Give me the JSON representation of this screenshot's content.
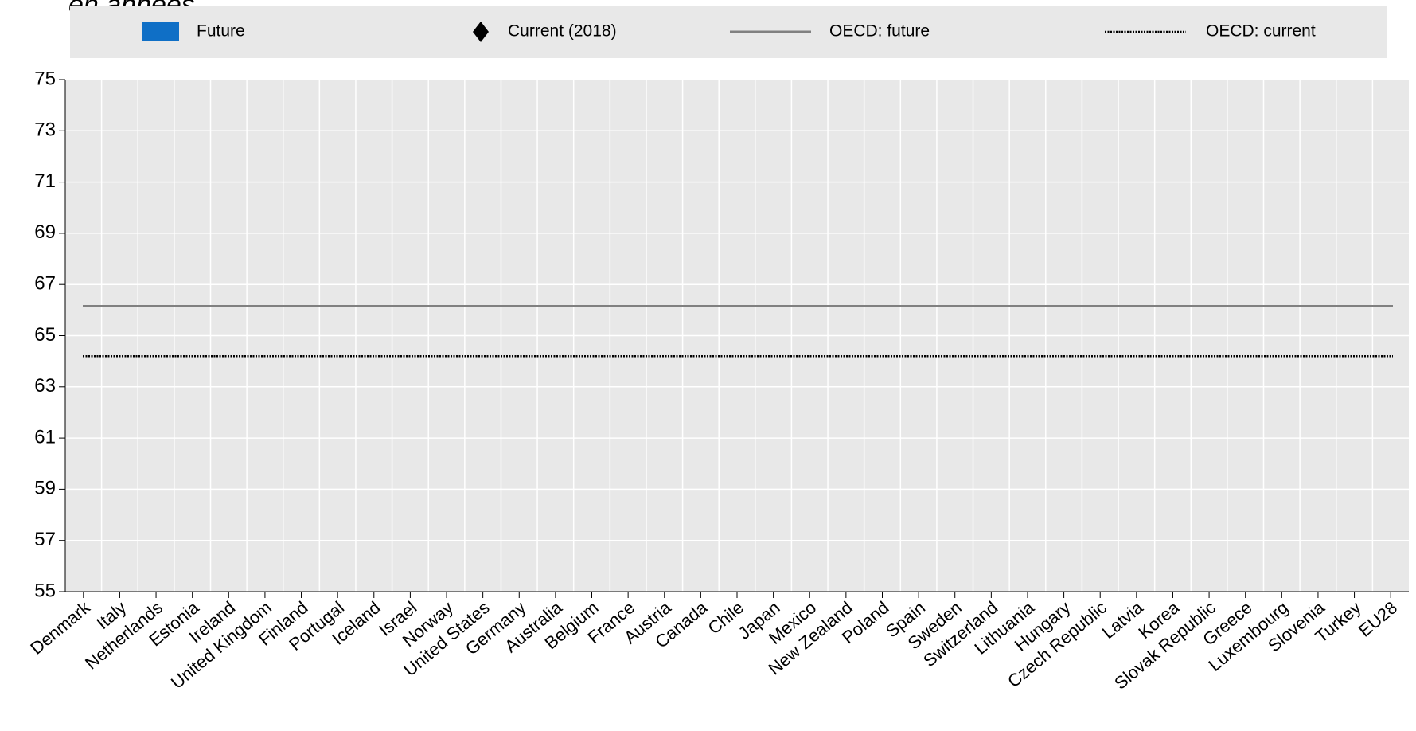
{
  "chart_data": {
    "type": "bar",
    "title": "en années",
    "categories": [
      "Denmark",
      "Italy",
      "Netherlands",
      "Estonia",
      "Ireland",
      "United Kingdom",
      "Finland",
      "Portugal",
      "Iceland",
      "Israel",
      "Norway",
      "United States",
      "Germany",
      "Australia",
      "Belgium",
      "France",
      "Austria",
      "Canada",
      "Chile",
      "Japan",
      "Mexico",
      "New Zealand",
      "Poland",
      "Spain",
      "Sweden",
      "Switzerland",
      "Lithuania",
      "Hungary",
      "Czech Republic",
      "Latvia",
      "Korea",
      "Slovak Republic",
      "Greece",
      "Luxembourg",
      "Slovenia",
      "Turkey",
      "EU28"
    ],
    "series": [
      {
        "name": "Future",
        "type": "bar",
        "color": "#0f6fc6",
        "values": [
          null,
          null,
          null,
          null,
          null,
          null,
          null,
          null,
          null,
          null,
          null,
          null,
          null,
          null,
          null,
          null,
          null,
          null,
          null,
          null,
          null,
          null,
          null,
          null,
          null,
          null,
          null,
          null,
          null,
          null,
          null,
          null,
          null,
          null,
          null,
          null,
          null
        ]
      },
      {
        "name": "Current (2018)",
        "type": "diamond",
        "color": "#000000",
        "values": [
          null,
          null,
          null,
          null,
          null,
          null,
          null,
          null,
          null,
          null,
          null,
          null,
          null,
          null,
          null,
          null,
          null,
          null,
          null,
          null,
          null,
          null,
          null,
          null,
          null,
          null,
          null,
          null,
          null,
          null,
          null,
          null,
          null,
          null,
          null,
          null,
          null
        ]
      }
    ],
    "reference_lines": [
      {
        "name": "OECD: future",
        "value": 66.15,
        "color": "#808080",
        "style": "solid"
      },
      {
        "name": "OECD: current",
        "value": 64.2,
        "color": "#000000",
        "style": "dotted"
      }
    ],
    "ylim": [
      55,
      75
    ],
    "yticks": [
      55,
      57,
      59,
      61,
      63,
      65,
      67,
      69,
      71,
      73,
      75
    ],
    "grid": true
  }
}
